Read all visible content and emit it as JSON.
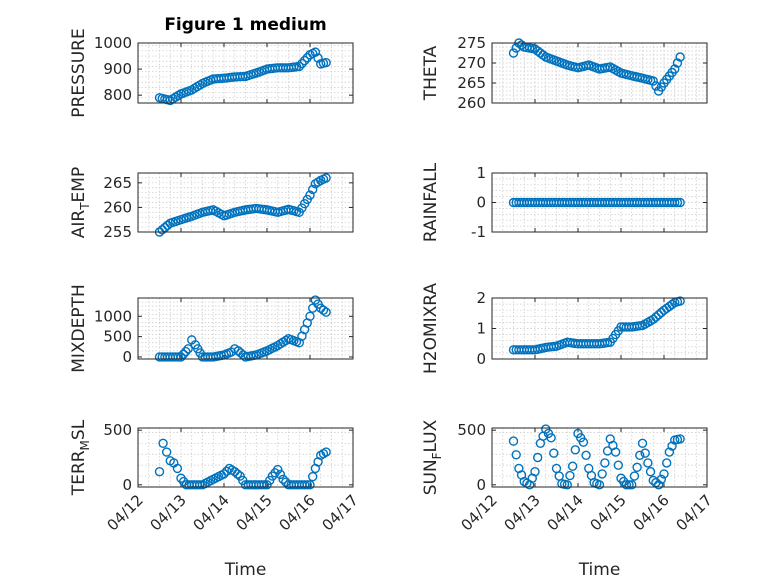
{
  "chart_data": [
    {
      "type": "scatter",
      "title": "Figure 1 medium",
      "ylabel": "PRESSURE",
      "ylim": [
        770,
        1000
      ],
      "yticks": [
        800,
        900,
        1000
      ],
      "xlim": [
        "04/12",
        "04/17"
      ],
      "xticks": [],
      "xlabel": "",
      "x": [
        "04/12 12:00",
        "04/12 18:00",
        "04/13 00:00",
        "04/13 06:00",
        "04/13 12:00",
        "04/13 18:00",
        "04/14 00:00",
        "04/14 06:00",
        "04/14 12:00",
        "04/14 18:00",
        "04/15 00:00",
        "04/15 06:00",
        "04/15 12:00",
        "04/15 18:00",
        "04/16 00:00",
        "04/16 03:00",
        "04/16 06:00",
        "04/16 09:00"
      ],
      "y": [
        790,
        780,
        805,
        820,
        845,
        862,
        865,
        870,
        872,
        885,
        900,
        905,
        905,
        910,
        955,
        965,
        920,
        925
      ]
    },
    {
      "type": "scatter",
      "ylabel": "THETA",
      "ylim": [
        260,
        275
      ],
      "yticks": [
        260,
        265,
        270,
        275
      ],
      "xlim": [
        "04/12",
        "04/17"
      ],
      "xticks": [],
      "xlabel": "",
      "x": [
        "04/12 12:00",
        "04/12 15:00",
        "04/12 18:00",
        "04/13 00:00",
        "04/13 06:00",
        "04/13 12:00",
        "04/13 18:00",
        "04/14 00:00",
        "04/14 06:00",
        "04/14 12:00",
        "04/14 18:00",
        "04/15 00:00",
        "04/15 06:00",
        "04/15 12:00",
        "04/15 18:00",
        "04/15 21:00",
        "04/16 00:00",
        "04/16 06:00",
        "04/16 09:00"
      ],
      "y": [
        272.5,
        275,
        274,
        273.5,
        271.5,
        270.5,
        269.5,
        268.8,
        269.5,
        268.5,
        269,
        267.5,
        266.8,
        266.2,
        265.5,
        263,
        265,
        268.5,
        271.5
      ]
    },
    {
      "type": "scatter",
      "ylabel": "AIR_TEMP",
      "ylim": [
        255,
        267
      ],
      "yticks": [
        255,
        260,
        265
      ],
      "xlim": [
        "04/12",
        "04/17"
      ],
      "xticks": [],
      "xlabel": "",
      "x": [
        "04/12 12:00",
        "04/12 18:00",
        "04/13 00:00",
        "04/13 06:00",
        "04/13 12:00",
        "04/13 18:00",
        "04/14 00:00",
        "04/14 06:00",
        "04/14 12:00",
        "04/14 18:00",
        "04/15 00:00",
        "04/15 06:00",
        "04/15 12:00",
        "04/15 18:00",
        "04/16 00:00",
        "04/16 03:00",
        "04/16 06:00",
        "04/16 09:00"
      ],
      "y": [
        255,
        256.8,
        257.5,
        258.2,
        259,
        259.5,
        258.3,
        259,
        259.5,
        259.8,
        259.5,
        259,
        259.6,
        259,
        262.5,
        264.8,
        265.5,
        266
      ]
    },
    {
      "type": "scatter",
      "ylabel": "RAINFALL",
      "ylim": [
        -1,
        1
      ],
      "yticks": [
        -1,
        0,
        1
      ],
      "xlim": [
        "04/12",
        "04/17"
      ],
      "xticks": [],
      "xlabel": "",
      "x": [
        "04/12 12:00",
        "04/13 00:00",
        "04/13 12:00",
        "04/14 00:00",
        "04/14 12:00",
        "04/15 00:00",
        "04/15 12:00",
        "04/16 00:00",
        "04/16 09:00"
      ],
      "y": [
        0,
        0,
        0,
        0,
        0,
        0,
        0,
        0,
        0
      ]
    },
    {
      "type": "scatter",
      "ylabel": "MIXDEPTH",
      "ylim": [
        -50,
        1450
      ],
      "yticks": [
        0,
        500,
        1000
      ],
      "xlim": [
        "04/12",
        "04/17"
      ],
      "xticks": [],
      "xlabel": "",
      "x": [
        "04/12 12:00",
        "04/12 18:00",
        "04/13 00:00",
        "04/13 04:00",
        "04/13 06:00",
        "04/13 08:00",
        "04/13 12:00",
        "04/13 18:00",
        "04/14 00:00",
        "04/14 04:00",
        "04/14 06:00",
        "04/14 08:00",
        "04/14 12:00",
        "04/14 18:00",
        "04/15 00:00",
        "04/15 06:00",
        "04/15 12:00",
        "04/15 18:00",
        "04/16 00:00",
        "04/16 03:00",
        "04/16 06:00",
        "04/16 09:00"
      ],
      "y": [
        0,
        0,
        0,
        200,
        420,
        300,
        0,
        0,
        50,
        120,
        200,
        150,
        0,
        50,
        150,
        280,
        450,
        350,
        1000,
        1400,
        1200,
        1100
      ]
    },
    {
      "type": "scatter",
      "ylabel": "H2OMIXRA",
      "ylim": [
        0,
        2
      ],
      "yticks": [
        0,
        1,
        2
      ],
      "xlim": [
        "04/12",
        "04/17"
      ],
      "xticks": [],
      "xlabel": "",
      "x": [
        "04/12 12:00",
        "04/12 18:00",
        "04/13 00:00",
        "04/13 06:00",
        "04/13 12:00",
        "04/13 18:00",
        "04/14 00:00",
        "04/14 06:00",
        "04/14 12:00",
        "04/14 18:00",
        "04/15 00:00",
        "04/15 06:00",
        "04/15 12:00",
        "04/15 18:00",
        "04/16 00:00",
        "04/16 06:00",
        "04/16 09:00"
      ],
      "y": [
        0.3,
        0.3,
        0.3,
        0.38,
        0.42,
        0.55,
        0.5,
        0.5,
        0.5,
        0.55,
        1.05,
        1.05,
        1.1,
        1.3,
        1.6,
        1.85,
        1.9
      ]
    },
    {
      "type": "scatter",
      "ylabel": "TERR_MSL",
      "ylim": [
        -20,
        520
      ],
      "yticks": [
        0,
        500
      ],
      "xlim": [
        "04/12",
        "04/17"
      ],
      "xticks": [
        "04/12",
        "04/13",
        "04/14",
        "04/15",
        "04/16",
        "04/17"
      ],
      "xlabel": "Time",
      "x": [
        "04/12 12:00",
        "04/12 14:00",
        "04/12 16:00",
        "04/12 18:00",
        "04/12 20:00",
        "04/12 22:00",
        "04/13 00:00",
        "04/13 03:00",
        "04/13 06:00",
        "04/13 12:00",
        "04/13 18:00",
        "04/14 00:00",
        "04/14 03:00",
        "04/14 06:00",
        "04/14 09:00",
        "04/14 12:00",
        "04/14 18:00",
        "04/15 00:00",
        "04/15 03:00",
        "04/15 06:00",
        "04/15 09:00",
        "04/15 12:00",
        "04/15 18:00",
        "04/16 00:00",
        "04/16 03:00",
        "04/16 06:00",
        "04/16 09:00"
      ],
      "y": [
        120,
        380,
        300,
        220,
        200,
        150,
        60,
        0,
        0,
        0,
        50,
        100,
        150,
        120,
        80,
        0,
        0,
        0,
        80,
        140,
        50,
        0,
        0,
        0,
        150,
        270,
        300
      ]
    },
    {
      "type": "scatter",
      "ylabel": "SUN_FLUX",
      "ylim": [
        -20,
        520
      ],
      "yticks": [
        0,
        500
      ],
      "xlim": [
        "04/12",
        "04/17"
      ],
      "xticks": [
        "04/12",
        "04/13",
        "04/14",
        "04/15",
        "04/16",
        "04/17"
      ],
      "xlabel": "Time",
      "x": [
        "04/12 12:00",
        "04/12 15:00",
        "04/12 18:00",
        "04/12 21:00",
        "04/13 00:00",
        "04/13 03:00",
        "04/13 06:00",
        "04/13 09:00",
        "04/13 12:00",
        "04/13 15:00",
        "04/13 18:00",
        "04/13 21:00",
        "04/14 00:00",
        "04/14 03:00",
        "04/14 06:00",
        "04/14 09:00",
        "04/14 12:00",
        "04/14 15:00",
        "04/14 18:00",
        "04/14 21:00",
        "04/15 00:00",
        "04/15 03:00",
        "04/15 06:00",
        "04/15 09:00",
        "04/15 12:00",
        "04/15 15:00",
        "04/15 18:00",
        "04/15 21:00",
        "04/16 00:00",
        "04/16 03:00",
        "04/16 06:00",
        "04/16 09:00"
      ],
      "y": [
        400,
        150,
        30,
        0,
        120,
        380,
        510,
        430,
        150,
        10,
        0,
        170,
        470,
        390,
        150,
        20,
        0,
        200,
        420,
        300,
        60,
        0,
        0,
        160,
        380,
        200,
        40,
        0,
        100,
        300,
        410,
        420
      ]
    }
  ]
}
